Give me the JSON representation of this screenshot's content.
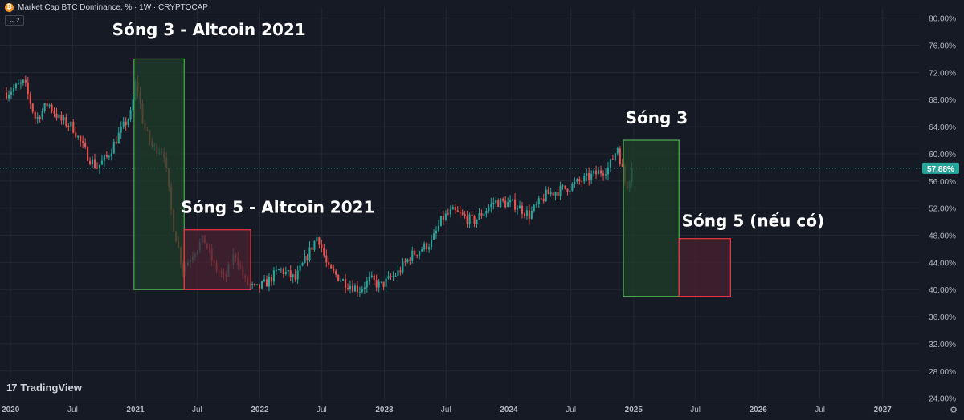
{
  "header": {
    "title": "Market Cap BTC Dominance, % · 1W · CRYPTOCAP",
    "collapse_count": "2"
  },
  "brand": {
    "name": "TradingView",
    "logo_text": "17"
  },
  "colors": {
    "background": "#161a25",
    "grid": "#232734",
    "up": "#26a69a",
    "down": "#ef5350",
    "price_tag": "#26a69a",
    "green_box_fill": "#1f3d2a",
    "green_box_stroke": "#4caf50",
    "red_box_fill": "#4a2230",
    "red_box_stroke": "#f23645",
    "label_text": "#ffffff",
    "axis_text": "#b2b5be"
  },
  "icons": {
    "symbol": "bitcoin-icon",
    "collapse": "chevron-down-icon",
    "settings": "gear-icon"
  },
  "chart_data": {
    "type": "candlestick",
    "x_ticks": [
      "2020",
      "Jul",
      "2021",
      "Jul",
      "2022",
      "Jul",
      "2023",
      "Jul",
      "2024",
      "Jul",
      "2025",
      "Jul",
      "2026",
      "Jul",
      "2027"
    ],
    "x_tick_dates": [
      "2020-01-01",
      "2020-07-01",
      "2021-01-01",
      "2021-07-01",
      "2022-01-01",
      "2022-07-01",
      "2023-01-01",
      "2023-07-01",
      "2024-01-01",
      "2024-07-01",
      "2025-01-01",
      "2025-07-01",
      "2026-01-01",
      "2026-07-01",
      "2027-01-01"
    ],
    "y_ticks": [
      "80.00%",
      "76.00%",
      "72.00%",
      "68.00%",
      "64.00%",
      "60.00%",
      "56.00%",
      "52.00%",
      "48.00%",
      "44.00%",
      "40.00%",
      "36.00%",
      "32.00%",
      "28.00%",
      "24.00%"
    ],
    "y_tick_values": [
      80,
      76,
      72,
      68,
      64,
      60,
      56,
      52,
      48,
      44,
      40,
      36,
      32,
      28,
      24
    ],
    "ylim": [
      23.6,
      81.5
    ],
    "xlim": [
      "2019-12-01",
      "2027-04-20"
    ],
    "last_value": 57.88,
    "last_label": "57.88%",
    "grid": true,
    "price_path": [
      [
        "2019-12-20",
        69.0
      ],
      [
        "2020-02-10",
        70.5
      ],
      [
        "2020-03-15",
        65.0
      ],
      [
        "2020-04-20",
        67.5
      ],
      [
        "2020-05-25",
        65.0
      ],
      [
        "2020-07-01",
        64.0
      ],
      [
        "2020-08-10",
        60.0
      ],
      [
        "2020-09-10",
        58.0
      ],
      [
        "2020-10-10",
        59.5
      ],
      [
        "2020-11-15",
        63.0
      ],
      [
        "2020-12-20",
        66.0
      ],
      [
        "2021-01-03",
        71.0
      ],
      [
        "2021-01-25",
        64.0
      ],
      [
        "2021-02-20",
        61.0
      ],
      [
        "2021-03-25",
        60.5
      ],
      [
        "2021-04-20",
        50.0
      ],
      [
        "2021-05-20",
        43.0
      ],
      [
        "2021-06-20",
        45.5
      ],
      [
        "2021-07-20",
        47.5
      ],
      [
        "2021-08-20",
        43.5
      ],
      [
        "2021-09-20",
        41.5
      ],
      [
        "2021-10-20",
        45.5
      ],
      [
        "2021-11-20",
        41.0
      ],
      [
        "2021-12-20",
        40.0
      ],
      [
        "2022-01-20",
        41.0
      ],
      [
        "2022-03-01",
        43.0
      ],
      [
        "2022-04-15",
        41.5
      ],
      [
        "2022-06-20",
        48.0
      ],
      [
        "2022-07-20",
        43.0
      ],
      [
        "2022-09-10",
        41.0
      ],
      [
        "2022-10-20",
        40.0
      ],
      [
        "2022-11-20",
        41.5
      ],
      [
        "2022-12-20",
        40.5
      ],
      [
        "2023-02-10",
        42.5
      ],
      [
        "2023-03-20",
        45.0
      ],
      [
        "2023-05-20",
        47.0
      ],
      [
        "2023-06-20",
        50.5
      ],
      [
        "2023-07-20",
        51.5
      ],
      [
        "2023-09-20",
        50.0
      ],
      [
        "2023-11-20",
        53.0
      ],
      [
        "2024-01-20",
        52.5
      ],
      [
        "2024-03-01",
        51.0
      ],
      [
        "2024-04-20",
        54.0
      ],
      [
        "2024-06-20",
        55.0
      ],
      [
        "2024-08-20",
        56.5
      ],
      [
        "2024-10-20",
        58.0
      ],
      [
        "2024-11-15",
        61.0
      ],
      [
        "2024-12-10",
        55.0
      ],
      [
        "2024-12-28",
        57.88
      ]
    ],
    "annotations": [
      {
        "label": "Sóng 3 - Altcoin 2021",
        "kind": "green",
        "x1": "2020-12-28",
        "x2": "2021-05-24",
        "y_top": 74.0,
        "y_bottom": 40.0,
        "label_x": "2020-10-25",
        "label_y": 77.5
      },
      {
        "label": "Sóng 5 - Altcoin 2021",
        "kind": "red",
        "x1": "2021-05-24",
        "x2": "2021-12-05",
        "y_top": 48.8,
        "y_bottom": 40.0,
        "label_x": "2021-05-15",
        "label_y": 51.3
      },
      {
        "label": "Sóng 3",
        "kind": "green",
        "x1": "2024-12-02",
        "x2": "2025-05-14",
        "y_top": 62.0,
        "y_bottom": 39.0,
        "label_x": "2024-12-08",
        "label_y": 64.5
      },
      {
        "label": "Sóng 5 (nếu có)",
        "kind": "red",
        "x1": "2025-05-14",
        "x2": "2025-10-12",
        "y_top": 47.5,
        "y_bottom": 39.0,
        "label_x": "2025-05-22",
        "label_y": 49.3
      }
    ]
  }
}
